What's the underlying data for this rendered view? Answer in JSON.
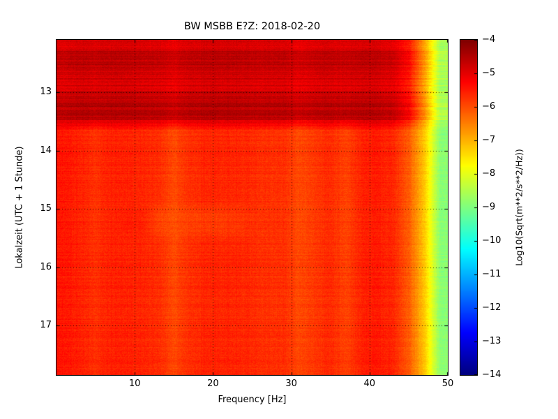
{
  "chart_data": {
    "type": "heatmap",
    "title": "BW MSBB E?Z: 2018-02-20",
    "xlabel": "Frequency [Hz]",
    "ylabel": "Lokalzeit (UTC + 1 Stunde)",
    "xlim": [
      0,
      50
    ],
    "time_range": [
      12.1,
      17.85
    ],
    "x_ticks": [
      10,
      20,
      30,
      40,
      50
    ],
    "y_ticks": [
      13,
      14,
      15,
      16,
      17
    ],
    "grid": "dotted",
    "colorbar": {
      "label": "Log10(Sqrt(m**2/s**2/Hz))",
      "colormap": "jet",
      "vmin": -14,
      "vmax": -4,
      "ticks": [
        -4,
        -5,
        -6,
        -7,
        -8,
        -9,
        -10,
        -11,
        -12,
        -13,
        -14
      ]
    },
    "heatmap": {
      "description": "Seismic spectrogram; strong dark-red band (~-4.8) from ~12:05 to ~13:30 local time, red-orange body (~-5.6) below, vertical attenuation bands near 15, 31 and 37 Hz, roll-off to yellow (~-7) then green (~-9) above 45 Hz",
      "band_end": 13.5,
      "noise_row_dark": 0.26,
      "noise_row_light": 0.1,
      "freq_centers": [
        1,
        3,
        5,
        7,
        9,
        11,
        13,
        15,
        17,
        19,
        21,
        23,
        25,
        27,
        29,
        31,
        33,
        35,
        37,
        39,
        41,
        43,
        45,
        47,
        49
      ],
      "profiles": {
        "dark": [
          -4.9,
          -4.8,
          -4.85,
          -4.8,
          -4.8,
          -4.85,
          -4.85,
          -5.0,
          -4.85,
          -4.8,
          -4.8,
          -4.8,
          -4.85,
          -4.85,
          -4.85,
          -5.0,
          -4.9,
          -4.85,
          -4.9,
          -4.8,
          -4.85,
          -4.95,
          -5.4,
          -6.8,
          -8.6
        ],
        "dark_streak": [
          -4.6,
          -4.5,
          -4.55,
          -4.5,
          -4.5,
          -4.55,
          -4.55,
          -4.7,
          -4.55,
          -4.5,
          -4.5,
          -4.5,
          -4.55,
          -4.55,
          -4.55,
          -4.7,
          -4.6,
          -4.55,
          -4.6,
          -4.5,
          -4.55,
          -4.65,
          -5.15,
          -6.6,
          -8.5
        ],
        "light": [
          -5.45,
          -5.55,
          -5.7,
          -5.55,
          -5.55,
          -5.6,
          -5.65,
          -5.95,
          -5.7,
          -5.6,
          -5.6,
          -5.6,
          -5.65,
          -5.7,
          -5.7,
          -5.95,
          -5.8,
          -5.65,
          -5.9,
          -5.55,
          -5.5,
          -5.6,
          -6.1,
          -7.2,
          -8.9
        ],
        "light_streak": [
          -5.45,
          -5.55,
          -5.7,
          -5.55,
          -5.5,
          -5.55,
          -5.85,
          -6.0,
          -5.85,
          -5.8,
          -5.8,
          -5.75,
          -5.7,
          -5.7,
          -5.7,
          -5.95,
          -5.8,
          -5.65,
          -5.9,
          -5.55,
          -5.5,
          -5.6,
          -6.1,
          -7.2,
          -8.9
        ]
      },
      "row_profiles": [
        "dark",
        "dark_streak",
        "dark",
        "dark",
        "dark_streak",
        "dark_streak",
        "light",
        "light",
        "light",
        "light",
        "light",
        "light",
        "light_streak",
        "light_streak",
        "light",
        "light",
        "light",
        "light",
        "light",
        "light",
        "light",
        "light",
        "light",
        "light"
      ]
    }
  }
}
